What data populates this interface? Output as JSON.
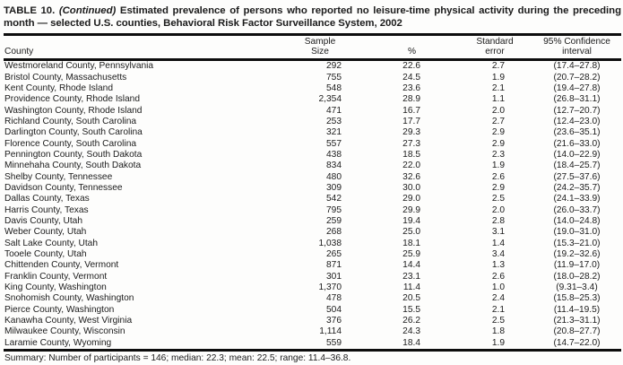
{
  "table": {
    "title_label": "TABLE 10.",
    "title_continued": "(Continued)",
    "title_text": "Estimated prevalence of persons who reported no leisure-time physical activity during the preceding month — selected U.S. counties, Behavioral Risk Factor Surveillance System, 2002",
    "columns": {
      "county": "County",
      "sample": [
        "Sample",
        "Size"
      ],
      "percent": "%",
      "standard_error": [
        "Standard",
        "error"
      ],
      "confidence_interval": [
        "95% Confidence",
        "interval"
      ]
    },
    "rows": [
      {
        "county": "Westmoreland County, Pennsylvania",
        "sample_size": "292",
        "percent": "22.6",
        "standard_error": "2.7",
        "confidence_interval": "(17.4–27.8)"
      },
      {
        "county": "Bristol County, Massachusetts",
        "sample_size": "755",
        "percent": "24.5",
        "standard_error": "1.9",
        "confidence_interval": "(20.7–28.2)"
      },
      {
        "county": "Kent County, Rhode Island",
        "sample_size": "548",
        "percent": "23.6",
        "standard_error": "2.1",
        "confidence_interval": "(19.4–27.8)"
      },
      {
        "county": "Providence County, Rhode Island",
        "sample_size": "2,354",
        "percent": "28.9",
        "standard_error": "1.1",
        "confidence_interval": "(26.8–31.1)"
      },
      {
        "county": "Washington County, Rhode Island",
        "sample_size": "471",
        "percent": "16.7",
        "standard_error": "2.0",
        "confidence_interval": "(12.7–20.7)"
      },
      {
        "county": "Richland County, South Carolina",
        "sample_size": "253",
        "percent": "17.7",
        "standard_error": "2.7",
        "confidence_interval": "(12.4–23.0)"
      },
      {
        "county": "Darlington County, South Carolina",
        "sample_size": "321",
        "percent": "29.3",
        "standard_error": "2.9",
        "confidence_interval": "(23.6–35.1)"
      },
      {
        "county": "Florence County, South Carolina",
        "sample_size": "557",
        "percent": "27.3",
        "standard_error": "2.9",
        "confidence_interval": "(21.6–33.0)"
      },
      {
        "county": "Pennington County, South Dakota",
        "sample_size": "438",
        "percent": "18.5",
        "standard_error": "2.3",
        "confidence_interval": "(14.0–22.9)"
      },
      {
        "county": "Minnehaha County, South Dakota",
        "sample_size": "834",
        "percent": "22.0",
        "standard_error": "1.9",
        "confidence_interval": "(18.4–25.7)"
      },
      {
        "county": "Shelby County, Tennessee",
        "sample_size": "480",
        "percent": "32.6",
        "standard_error": "2.6",
        "confidence_interval": "(27.5–37.6)"
      },
      {
        "county": "Davidson County, Tennessee",
        "sample_size": "309",
        "percent": "30.0",
        "standard_error": "2.9",
        "confidence_interval": "(24.2–35.7)"
      },
      {
        "county": "Dallas County, Texas",
        "sample_size": "542",
        "percent": "29.0",
        "standard_error": "2.5",
        "confidence_interval": "(24.1–33.9)"
      },
      {
        "county": "Harris County, Texas",
        "sample_size": "795",
        "percent": "29.9",
        "standard_error": "2.0",
        "confidence_interval": "(26.0–33.7)"
      },
      {
        "county": "Davis County, Utah",
        "sample_size": "259",
        "percent": "19.4",
        "standard_error": "2.8",
        "confidence_interval": "(14.0–24.8)"
      },
      {
        "county": "Weber County, Utah",
        "sample_size": "268",
        "percent": "25.0",
        "standard_error": "3.1",
        "confidence_interval": "(19.0–31.0)"
      },
      {
        "county": "Salt Lake County, Utah",
        "sample_size": "1,038",
        "percent": "18.1",
        "standard_error": "1.4",
        "confidence_interval": "(15.3–21.0)"
      },
      {
        "county": "Tooele County, Utah",
        "sample_size": "265",
        "percent": "25.9",
        "standard_error": "3.4",
        "confidence_interval": "(19.2–32.6)"
      },
      {
        "county": "Chittenden County, Vermont",
        "sample_size": "871",
        "percent": "14.4",
        "standard_error": "1.3",
        "confidence_interval": "(11.9–17.0)"
      },
      {
        "county": "Franklin County, Vermont",
        "sample_size": "301",
        "percent": "23.1",
        "standard_error": "2.6",
        "confidence_interval": "(18.0–28.2)"
      },
      {
        "county": "King County, Washington",
        "sample_size": "1,370",
        "percent": "11.4",
        "standard_error": "1.0",
        "confidence_interval": "(9.31–3.4)"
      },
      {
        "county": "Snohomish County, Washington",
        "sample_size": "478",
        "percent": "20.5",
        "standard_error": "2.4",
        "confidence_interval": "(15.8–25.3)"
      },
      {
        "county": "Pierce County, Washington",
        "sample_size": "504",
        "percent": "15.5",
        "standard_error": "2.1",
        "confidence_interval": "(11.4–19.5)"
      },
      {
        "county": "Kanawha County, West Virginia",
        "sample_size": "376",
        "percent": "26.2",
        "standard_error": "2.5",
        "confidence_interval": "(21.3–31.1)"
      },
      {
        "county": "Milwaukee County, Wisconsin",
        "sample_size": "1,114",
        "percent": "24.3",
        "standard_error": "1.8",
        "confidence_interval": "(20.8–27.7)"
      },
      {
        "county": "Laramie County, Wyoming",
        "sample_size": "559",
        "percent": "18.4",
        "standard_error": "1.9",
        "confidence_interval": "(14.7–22.0)"
      }
    ],
    "summary": "Summary: Number of participants = 146; median: 22.3; mean: 22.5; range: 11.4–36.8."
  }
}
